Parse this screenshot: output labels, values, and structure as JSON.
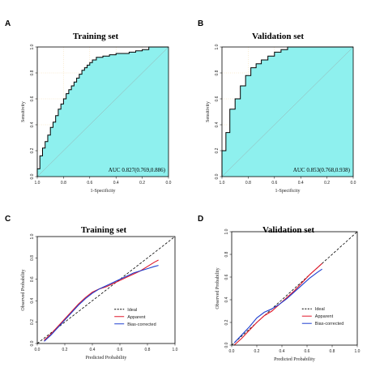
{
  "chart_data": [
    {
      "panel": "A",
      "type": "line",
      "title": "Training set",
      "xlabel": "1-Specificity",
      "ylabel": "Sensitivity",
      "x_reversed": true,
      "xlim": [
        1.0,
        0.0
      ],
      "ylim": [
        0.0,
        1.0
      ],
      "x_ticks": [
        "1.0",
        "0.8",
        "0.6",
        "0.4",
        "0.2",
        "0.0"
      ],
      "y_ticks": [
        "0.0",
        "0.2",
        "0.4",
        "0.6",
        "0.8",
        "1.0"
      ],
      "auc_label": "AUC 0.827(0.769,0.886)",
      "fill_color": "#8ef0ee",
      "series": [
        {
          "specificity": [
            1.0,
            1.0,
            0.98,
            0.98,
            0.96,
            0.96,
            0.94,
            0.94,
            0.92,
            0.92,
            0.9,
            0.9,
            0.88,
            0.88,
            0.86,
            0.86,
            0.84,
            0.84,
            0.82,
            0.82,
            0.8,
            0.8,
            0.78,
            0.78,
            0.76,
            0.76,
            0.74,
            0.74,
            0.72,
            0.72,
            0.7,
            0.7,
            0.68,
            0.68,
            0.66,
            0.66,
            0.64,
            0.64,
            0.62,
            0.62,
            0.6,
            0.6,
            0.58,
            0.58,
            0.55,
            0.55,
            0.5,
            0.5,
            0.45,
            0.45,
            0.4,
            0.4,
            0.35,
            0.35,
            0.3,
            0.3,
            0.25,
            0.25,
            0.2,
            0.2,
            0.15,
            0.15,
            0.1,
            0.1,
            0.0
          ],
          "sensitivity": [
            0.0,
            0.06,
            0.06,
            0.16,
            0.16,
            0.22,
            0.22,
            0.27,
            0.27,
            0.32,
            0.32,
            0.38,
            0.38,
            0.42,
            0.42,
            0.47,
            0.47,
            0.52,
            0.52,
            0.56,
            0.56,
            0.6,
            0.6,
            0.64,
            0.64,
            0.67,
            0.67,
            0.7,
            0.7,
            0.73,
            0.73,
            0.76,
            0.76,
            0.79,
            0.79,
            0.82,
            0.82,
            0.84,
            0.84,
            0.86,
            0.86,
            0.88,
            0.88,
            0.9,
            0.9,
            0.92,
            0.92,
            0.93,
            0.93,
            0.94,
            0.94,
            0.95,
            0.95,
            0.95,
            0.95,
            0.96,
            0.96,
            0.97,
            0.97,
            0.98,
            0.98,
            1.0,
            1.0,
            1.0,
            1.0
          ]
        }
      ]
    },
    {
      "panel": "B",
      "type": "line",
      "title": "Validation set",
      "xlabel": "1-Specificity",
      "ylabel": "Sensitivity",
      "x_reversed": true,
      "xlim": [
        1.0,
        0.0
      ],
      "ylim": [
        0.0,
        1.0
      ],
      "x_ticks": [
        "1.0",
        "0.8",
        "0.6",
        "0.4",
        "0.2",
        "0.0"
      ],
      "y_ticks": [
        "0.0",
        "0.2",
        "0.4",
        "0.6",
        "0.8",
        "1.0"
      ],
      "auc_label": "AUC 0.853(0.768,0.938)",
      "fill_color": "#8ef0ee",
      "series": [
        {
          "specificity": [
            1.0,
            1.0,
            0.97,
            0.97,
            0.94,
            0.94,
            0.9,
            0.9,
            0.86,
            0.86,
            0.82,
            0.82,
            0.78,
            0.78,
            0.74,
            0.74,
            0.7,
            0.7,
            0.65,
            0.65,
            0.6,
            0.6,
            0.55,
            0.55,
            0.5,
            0.5,
            0.0
          ],
          "sensitivity": [
            0.0,
            0.2,
            0.2,
            0.34,
            0.34,
            0.52,
            0.52,
            0.6,
            0.6,
            0.7,
            0.7,
            0.78,
            0.78,
            0.84,
            0.84,
            0.87,
            0.87,
            0.9,
            0.9,
            0.93,
            0.93,
            0.96,
            0.96,
            0.98,
            0.98,
            1.0,
            1.0
          ]
        }
      ]
    },
    {
      "panel": "C",
      "type": "line",
      "title": "Training set",
      "xlabel": "Predicted Probability",
      "ylabel": "Observed Probability",
      "xlim": [
        0.0,
        1.0
      ],
      "ylim": [
        0.0,
        1.0
      ],
      "x_ticks": [
        "0.0",
        "0.2",
        "0.4",
        "0.6",
        "0.8",
        "1.0"
      ],
      "y_ticks": [
        "0.0",
        "0.2",
        "0.4",
        "0.6",
        "0.8",
        "1.0"
      ],
      "legend_position": "bottom-right",
      "legend": [
        "Ideal",
        "Apparent",
        "Bias-corrected"
      ],
      "series": [
        {
          "name": "Ideal",
          "color": "#000000",
          "style": "dashed",
          "x": [
            0.0,
            1.0
          ],
          "y": [
            0.0,
            1.0
          ]
        },
        {
          "name": "Apparent",
          "color": "#e0182a",
          "style": "solid",
          "x": [
            0.05,
            0.1,
            0.15,
            0.2,
            0.25,
            0.3,
            0.35,
            0.4,
            0.45,
            0.5,
            0.55,
            0.6,
            0.65,
            0.7,
            0.75,
            0.8,
            0.85,
            0.88
          ],
          "y": [
            0.03,
            0.09,
            0.16,
            0.23,
            0.3,
            0.37,
            0.43,
            0.48,
            0.51,
            0.53,
            0.56,
            0.59,
            0.62,
            0.65,
            0.68,
            0.72,
            0.76,
            0.78
          ]
        },
        {
          "name": "Bias-corrected",
          "color": "#1f3fd0",
          "style": "solid",
          "x": [
            0.05,
            0.1,
            0.15,
            0.2,
            0.25,
            0.3,
            0.35,
            0.4,
            0.45,
            0.5,
            0.55,
            0.6,
            0.65,
            0.7,
            0.75,
            0.8,
            0.85,
            0.88
          ],
          "y": [
            0.02,
            0.08,
            0.15,
            0.22,
            0.29,
            0.36,
            0.42,
            0.47,
            0.51,
            0.54,
            0.57,
            0.6,
            0.63,
            0.66,
            0.68,
            0.7,
            0.72,
            0.73
          ]
        }
      ]
    },
    {
      "panel": "D",
      "type": "line",
      "title": "Validation set",
      "xlabel": "Predicted Probability",
      "ylabel": "Observed Probability",
      "xlim": [
        0.0,
        1.0
      ],
      "ylim": [
        0.0,
        1.0
      ],
      "x_ticks": [
        "0.0",
        "0.2",
        "0.4",
        "0.6",
        "0.8",
        "1.0"
      ],
      "y_ticks": [
        "0.0",
        "0.2",
        "0.4",
        "0.6",
        "0.8",
        "1.0"
      ],
      "legend_position": "bottom-right",
      "legend": [
        "Ideal",
        "Apparent",
        "Bias-corrected"
      ],
      "series": [
        {
          "name": "Ideal",
          "color": "#000000",
          "style": "dashed",
          "x": [
            0.0,
            1.0
          ],
          "y": [
            0.0,
            1.0
          ]
        },
        {
          "name": "Apparent",
          "color": "#e0182a",
          "style": "solid",
          "x": [
            0.02,
            0.08,
            0.14,
            0.2,
            0.26,
            0.32,
            0.38,
            0.44,
            0.5,
            0.56,
            0.62,
            0.68,
            0.72
          ],
          "y": [
            0.0,
            0.06,
            0.13,
            0.2,
            0.26,
            0.3,
            0.36,
            0.42,
            0.48,
            0.55,
            0.62,
            0.68,
            0.72
          ]
        },
        {
          "name": "Bias-corrected",
          "color": "#1f3fd0",
          "style": "solid",
          "x": [
            0.02,
            0.08,
            0.14,
            0.2,
            0.26,
            0.32,
            0.38,
            0.44,
            0.5,
            0.56,
            0.62,
            0.68,
            0.72
          ],
          "y": [
            0.02,
            0.09,
            0.16,
            0.24,
            0.29,
            0.32,
            0.36,
            0.41,
            0.47,
            0.53,
            0.59,
            0.64,
            0.67
          ]
        }
      ]
    }
  ]
}
